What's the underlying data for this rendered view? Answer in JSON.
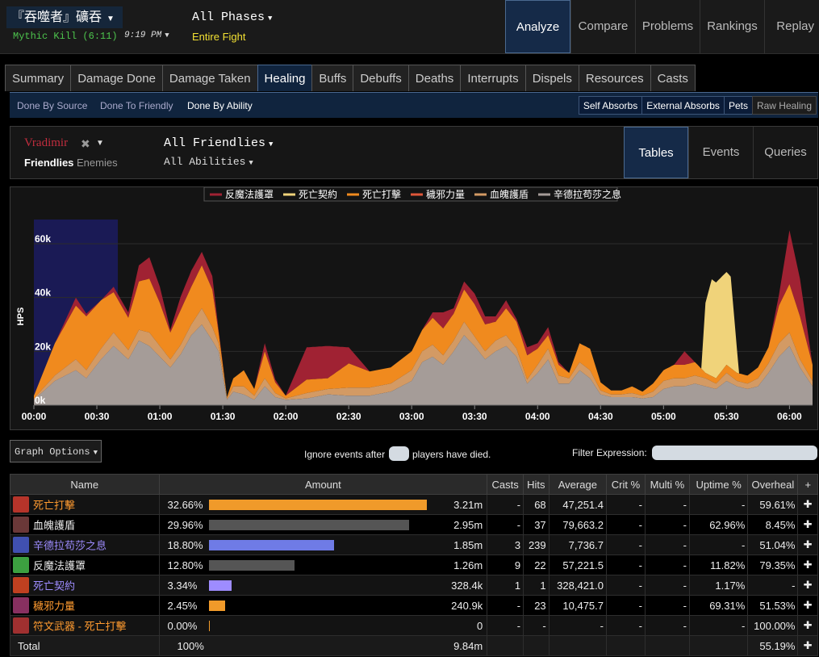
{
  "header": {
    "report_title": "『吞噬者』礦吞",
    "fight": "Mythic Kill (6:11)",
    "time": "9:19 PM",
    "phase": "All Phases",
    "phase_sub": "Entire Fight",
    "nav": [
      "Analyze",
      "Compare",
      "Problems",
      "Rankings",
      "Replay"
    ],
    "nav_active": "Analyze"
  },
  "tabs": [
    "Summary",
    "Damage Done",
    "Damage Taken",
    "Healing",
    "Buffs",
    "Debuffs",
    "Deaths",
    "Interrupts",
    "Dispels",
    "Resources",
    "Casts"
  ],
  "tab_active": "Healing",
  "subbar": {
    "views": [
      "Done By Source",
      "Done To Friendly",
      "Done By Ability"
    ],
    "view_active": "Done By Ability",
    "toggles": [
      {
        "label": "Self Absorbs",
        "on": true
      },
      {
        "label": "External Absorbs",
        "on": true
      },
      {
        "label": "Pets",
        "on": true
      },
      {
        "label": "Raw Healing",
        "on": false
      }
    ]
  },
  "filter": {
    "actor": "Vradimir",
    "friendlies": "Friendlies",
    "enemies": "Enemies",
    "target": "All Friendlies",
    "abilities": "All Abilities",
    "views": [
      "Tables",
      "Events",
      "Queries"
    ],
    "view_active": "Tables"
  },
  "chart_data": {
    "type": "area",
    "stacked": true,
    "ylabel": "HPS",
    "y_ticks": [
      "0k",
      "20k",
      "40k",
      "60k"
    ],
    "ylim": [
      0,
      75000
    ],
    "x_ticks": [
      "00:00",
      "00:30",
      "01:00",
      "01:30",
      "02:00",
      "02:30",
      "03:00",
      "03:30",
      "04:00",
      "04:30",
      "05:00",
      "05:30",
      "06:00"
    ],
    "xlim": [
      0,
      371
    ],
    "highlight_range": [
      0,
      40
    ],
    "legend_position": "top",
    "series": [
      {
        "name": "辛德拉苟莎之息",
        "color": "#a59c98",
        "x": [
          0,
          10,
          20,
          25,
          32,
          38,
          45,
          50,
          55,
          60,
          65,
          70,
          75,
          80,
          85,
          88,
          92,
          95,
          100,
          105,
          110,
          115,
          120,
          130,
          140,
          150,
          160,
          170,
          180,
          185,
          190,
          195,
          200,
          205,
          210,
          215,
          220,
          225,
          230,
          235,
          240,
          245,
          250,
          255,
          260,
          265,
          270,
          275,
          280,
          285,
          290,
          295,
          300,
          305,
          310,
          315,
          320,
          325,
          330,
          335,
          340,
          345,
          350,
          355,
          360,
          365,
          371
        ],
        "y": [
          2000,
          9000,
          13000,
          10000,
          17000,
          22000,
          17000,
          24000,
          22000,
          18000,
          14000,
          19000,
          26000,
          30000,
          24000,
          20000,
          2000,
          5000,
          4000,
          2000,
          7000,
          3000,
          2000,
          2500,
          4000,
          3500,
          3500,
          5000,
          9000,
          16000,
          18000,
          15000,
          20000,
          26000,
          22000,
          17000,
          20000,
          22000,
          18000,
          8000,
          12000,
          17000,
          8000,
          8000,
          13000,
          10000,
          4000,
          3000,
          3000,
          3000,
          2500,
          3000,
          6000,
          7000,
          7000,
          8000,
          7000,
          6000,
          9000,
          7000,
          6000,
          7000,
          12000,
          18000,
          22000,
          14000,
          7000
        ]
      },
      {
        "name": "血魄護盾",
        "color": "#d39a64",
        "x": [
          0,
          10,
          20,
          25,
          32,
          38,
          45,
          50,
          55,
          60,
          65,
          70,
          75,
          80,
          85,
          88,
          92,
          95,
          100,
          105,
          110,
          115,
          120,
          130,
          140,
          150,
          160,
          170,
          180,
          185,
          190,
          195,
          200,
          205,
          210,
          215,
          220,
          225,
          230,
          235,
          240,
          245,
          250,
          255,
          260,
          265,
          270,
          275,
          280,
          285,
          290,
          295,
          300,
          305,
          310,
          315,
          320,
          325,
          330,
          335,
          340,
          345,
          350,
          355,
          360,
          365,
          371
        ],
        "y": [
          500,
          2000,
          4000,
          3000,
          4000,
          5000,
          3500,
          4000,
          5000,
          4000,
          3000,
          3500,
          4000,
          6000,
          5000,
          3000,
          500,
          2000,
          3000,
          1500,
          3000,
          1500,
          500,
          2000,
          2000,
          3000,
          3000,
          3000,
          4000,
          4000,
          4500,
          3500,
          4000,
          5000,
          3500,
          3000,
          4000,
          4000,
          3000,
          1500,
          3000,
          4000,
          3000,
          2000,
          3000,
          3000,
          1500,
          1000,
          1000,
          1500,
          1000,
          2000,
          3000,
          3000,
          3000,
          3000,
          3000,
          2000,
          3000,
          2000,
          2000,
          3000,
          3500,
          5000,
          5000,
          3000,
          2000
        ]
      },
      {
        "name": "死亡打擊",
        "color": "#f08a1e",
        "x": [
          0,
          10,
          20,
          25,
          32,
          38,
          45,
          50,
          55,
          60,
          65,
          70,
          75,
          80,
          85,
          88,
          92,
          95,
          100,
          105,
          110,
          115,
          120,
          130,
          140,
          150,
          160,
          170,
          180,
          185,
          190,
          195,
          200,
          205,
          210,
          215,
          220,
          225,
          230,
          235,
          240,
          245,
          250,
          255,
          260,
          265,
          270,
          275,
          280,
          285,
          290,
          295,
          300,
          305,
          310,
          315,
          320,
          325,
          330,
          335,
          340,
          345,
          350,
          355,
          360,
          365,
          371
        ],
        "y": [
          1000,
          12000,
          20000,
          20000,
          18000,
          15000,
          12000,
          18000,
          20000,
          16000,
          10000,
          13000,
          14000,
          16000,
          14000,
          4000,
          500,
          3000,
          6000,
          2500,
          10000,
          4000,
          1000,
          5000,
          4000,
          9000,
          6000,
          6000,
          7000,
          8000,
          10000,
          10000,
          10000,
          12000,
          12000,
          10000,
          7000,
          10000,
          10000,
          9000,
          6000,
          5000,
          4000,
          2000,
          7000,
          8000,
          3000,
          1500,
          1500,
          2500,
          1500,
          3000,
          4000,
          5000,
          5000,
          5000,
          2000,
          2000,
          3000,
          3000,
          3000,
          4000,
          6000,
          14000,
          18000,
          16000,
          6000
        ]
      },
      {
        "name": "反魔法護罩",
        "color": "#a02233",
        "x": [
          0,
          10,
          20,
          25,
          32,
          38,
          45,
          50,
          55,
          60,
          65,
          70,
          75,
          80,
          85,
          88,
          92,
          95,
          100,
          105,
          110,
          115,
          120,
          130,
          140,
          150,
          160,
          170,
          180,
          185,
          190,
          195,
          200,
          205,
          210,
          215,
          220,
          225,
          230,
          235,
          240,
          245,
          250,
          255,
          260,
          265,
          270,
          275,
          280,
          285,
          290,
          295,
          300,
          305,
          310,
          315,
          320,
          325,
          330,
          335,
          340,
          345,
          350,
          355,
          360,
          365,
          371
        ],
        "y": [
          0,
          0,
          3000,
          1000,
          0,
          2000,
          2000,
          6000,
          8000,
          6000,
          1000,
          5000,
          6000,
          5000,
          5000,
          1000,
          0,
          0,
          0,
          0,
          3000,
          1000,
          0,
          12000,
          12000,
          6000,
          0,
          0,
          0,
          0,
          2000,
          6000,
          2000,
          3000,
          4000,
          3000,
          2000,
          3000,
          1000,
          3000,
          2000,
          3000,
          1000,
          0,
          0,
          0,
          0,
          0,
          0,
          0,
          0,
          0,
          0,
          0,
          5000,
          0,
          0,
          0,
          0,
          0,
          0,
          0,
          0,
          4000,
          20000,
          14000,
          0
        ]
      },
      {
        "name": "死亡契約",
        "color": "#f0d37a",
        "x": [
          0,
          318,
          320,
          323,
          328,
          332,
          336,
          338,
          371
        ],
        "y": [
          0,
          0,
          26000,
          36000,
          35000,
          34000,
          0,
          0,
          0
        ]
      },
      {
        "name": "穢邪力量",
        "color": "#e0573a",
        "x": [
          0,
          371
        ],
        "y": [
          0,
          0
        ]
      }
    ]
  },
  "graph_options": {
    "label": "Graph Options",
    "ignore_label_1": "Ignore events after",
    "ignore_label_2": "players have died.",
    "filter_label": "Filter Expression:"
  },
  "table": {
    "headers": [
      "Name",
      "Amount",
      "Casts",
      "Hits",
      "Average",
      "Crit %",
      "Multi %",
      "Uptime %",
      "Overheal",
      "+"
    ],
    "rows": [
      {
        "name": "死亡打擊",
        "name_color": "#ff9b30",
        "icon_color": "#b5342a",
        "pct": "32.66%",
        "share": 0.3266,
        "bar_color": "#f09a2a",
        "amount": "3.21m",
        "casts": "-",
        "hits": "68",
        "average": "47,251.4",
        "crit": "-",
        "multi": "-",
        "uptime": "-",
        "overheal": "59.61%"
      },
      {
        "name": "血魄護盾",
        "name_color": "#e8e8e8",
        "icon_color": "#6a3838",
        "pct": "29.96%",
        "share": 0.2996,
        "bar_color": "#555555",
        "amount": "2.95m",
        "casts": "-",
        "hits": "37",
        "average": "79,663.2",
        "crit": "-",
        "multi": "-",
        "uptime": "62.96%",
        "overheal": "8.45%"
      },
      {
        "name": "辛德拉苟莎之息",
        "name_color": "#9e8cff",
        "icon_color": "#4050b0",
        "pct": "18.80%",
        "share": 0.188,
        "bar_color": "#6f7be6",
        "amount": "1.85m",
        "casts": "3",
        "hits": "239",
        "average": "7,736.7",
        "crit": "-",
        "multi": "-",
        "uptime": "-",
        "overheal": "51.04%"
      },
      {
        "name": "反魔法護罩",
        "name_color": "#e8e8e8",
        "icon_color": "#3ca040",
        "pct": "12.80%",
        "share": 0.128,
        "bar_color": "#555555",
        "amount": "1.26m",
        "casts": "9",
        "hits": "22",
        "average": "57,221.5",
        "crit": "-",
        "multi": "-",
        "uptime": "11.82%",
        "overheal": "79.35%"
      },
      {
        "name": "死亡契約",
        "name_color": "#9e8cff",
        "icon_color": "#c04020",
        "pct": "3.34%",
        "share": 0.0334,
        "bar_color": "#9e8cff",
        "amount": "328.4k",
        "casts": "1",
        "hits": "1",
        "average": "328,421.0",
        "crit": "-",
        "multi": "-",
        "uptime": "1.17%",
        "overheal": "-"
      },
      {
        "name": "穢邪力量",
        "name_color": "#ff9b30",
        "icon_color": "#883060",
        "pct": "2.45%",
        "share": 0.0245,
        "bar_color": "#f09a2a",
        "amount": "240.9k",
        "casts": "-",
        "hits": "23",
        "average": "10,475.7",
        "crit": "-",
        "multi": "-",
        "uptime": "69.31%",
        "overheal": "51.53%"
      },
      {
        "name": "符文武器 - 死亡打擊",
        "name_color": "#ff9b30",
        "icon_color": "#a03030",
        "pct": "0.00%",
        "share": 0.0,
        "bar_color": "#f09a2a",
        "amount": "0",
        "casts": "-",
        "hits": "-",
        "average": "-",
        "crit": "-",
        "multi": "-",
        "uptime": "-",
        "overheal": "100.00%"
      }
    ],
    "total": {
      "label": "Total",
      "pct": "100%",
      "amount": "9.84m",
      "overheal": "55.19%"
    }
  }
}
